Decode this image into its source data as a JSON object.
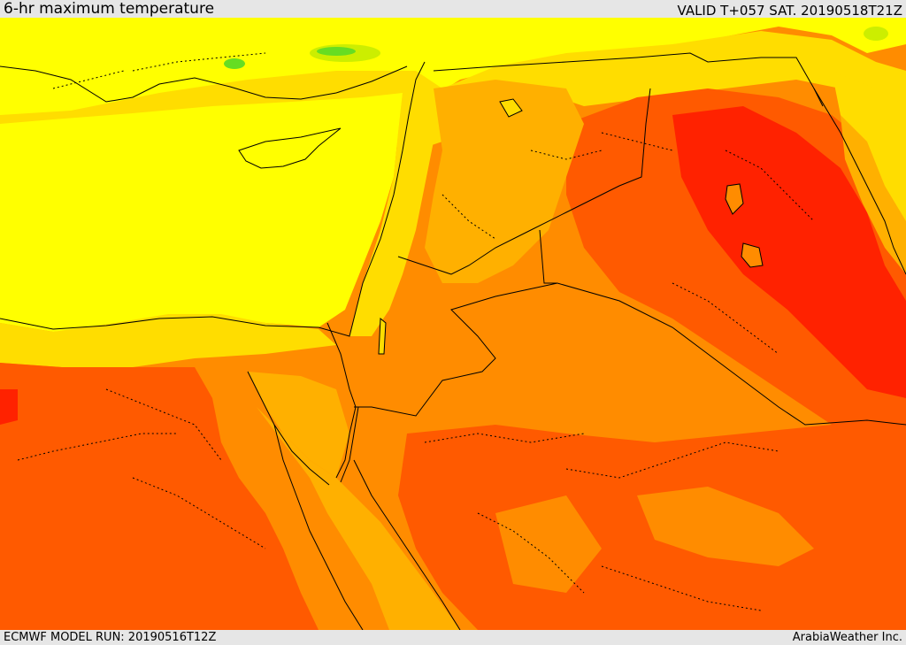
{
  "header": {
    "title": "6-hr maximum temperature",
    "valid_time": "VALID T+057 SAT. 20190518T21Z"
  },
  "footer": {
    "model_run": "ECMWF MODEL RUN: 20190516T12Z",
    "credit": "ArabiaWeather Inc."
  },
  "map": {
    "region": "Eastern Mediterranean and Middle East",
    "legend_colors": {
      "green": "#66dd22",
      "yellow_green": "#ccee00",
      "yellow": "#ffff00",
      "gold": "#ffdd00",
      "amber": "#ffb000",
      "orange": "#ff8c00",
      "red_orange": "#ff5a00",
      "red": "#ff2200"
    },
    "line_colors": {
      "border": "#000000",
      "coast": "#000000",
      "province": "#000000"
    }
  }
}
